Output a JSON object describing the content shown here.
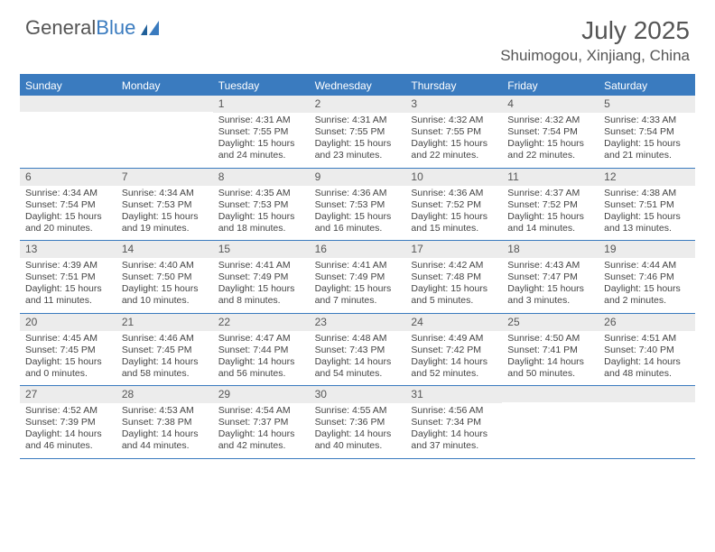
{
  "brand": {
    "part1": "General",
    "part2": "Blue"
  },
  "title": "July 2025",
  "location": "Shuimogou, Xinjiang, China",
  "colors": {
    "accent": "#3a7bbf",
    "header_text": "#ffffff",
    "daynum_bg": "#ececec",
    "text": "#444444",
    "muted": "#555555",
    "background": "#ffffff"
  },
  "fonts": {
    "title_size_pt": 21,
    "location_size_pt": 13,
    "day_header_size_pt": 9,
    "daynum_size_pt": 9,
    "body_size_pt": 8
  },
  "day_names": [
    "Sunday",
    "Monday",
    "Tuesday",
    "Wednesday",
    "Thursday",
    "Friday",
    "Saturday"
  ],
  "weeks": [
    [
      {
        "n": "",
        "sr": "",
        "ss": "",
        "dl": ""
      },
      {
        "n": "",
        "sr": "",
        "ss": "",
        "dl": ""
      },
      {
        "n": "1",
        "sr": "Sunrise: 4:31 AM",
        "ss": "Sunset: 7:55 PM",
        "dl": "Daylight: 15 hours and 24 minutes."
      },
      {
        "n": "2",
        "sr": "Sunrise: 4:31 AM",
        "ss": "Sunset: 7:55 PM",
        "dl": "Daylight: 15 hours and 23 minutes."
      },
      {
        "n": "3",
        "sr": "Sunrise: 4:32 AM",
        "ss": "Sunset: 7:55 PM",
        "dl": "Daylight: 15 hours and 22 minutes."
      },
      {
        "n": "4",
        "sr": "Sunrise: 4:32 AM",
        "ss": "Sunset: 7:54 PM",
        "dl": "Daylight: 15 hours and 22 minutes."
      },
      {
        "n": "5",
        "sr": "Sunrise: 4:33 AM",
        "ss": "Sunset: 7:54 PM",
        "dl": "Daylight: 15 hours and 21 minutes."
      }
    ],
    [
      {
        "n": "6",
        "sr": "Sunrise: 4:34 AM",
        "ss": "Sunset: 7:54 PM",
        "dl": "Daylight: 15 hours and 20 minutes."
      },
      {
        "n": "7",
        "sr": "Sunrise: 4:34 AM",
        "ss": "Sunset: 7:53 PM",
        "dl": "Daylight: 15 hours and 19 minutes."
      },
      {
        "n": "8",
        "sr": "Sunrise: 4:35 AM",
        "ss": "Sunset: 7:53 PM",
        "dl": "Daylight: 15 hours and 18 minutes."
      },
      {
        "n": "9",
        "sr": "Sunrise: 4:36 AM",
        "ss": "Sunset: 7:53 PM",
        "dl": "Daylight: 15 hours and 16 minutes."
      },
      {
        "n": "10",
        "sr": "Sunrise: 4:36 AM",
        "ss": "Sunset: 7:52 PM",
        "dl": "Daylight: 15 hours and 15 minutes."
      },
      {
        "n": "11",
        "sr": "Sunrise: 4:37 AM",
        "ss": "Sunset: 7:52 PM",
        "dl": "Daylight: 15 hours and 14 minutes."
      },
      {
        "n": "12",
        "sr": "Sunrise: 4:38 AM",
        "ss": "Sunset: 7:51 PM",
        "dl": "Daylight: 15 hours and 13 minutes."
      }
    ],
    [
      {
        "n": "13",
        "sr": "Sunrise: 4:39 AM",
        "ss": "Sunset: 7:51 PM",
        "dl": "Daylight: 15 hours and 11 minutes."
      },
      {
        "n": "14",
        "sr": "Sunrise: 4:40 AM",
        "ss": "Sunset: 7:50 PM",
        "dl": "Daylight: 15 hours and 10 minutes."
      },
      {
        "n": "15",
        "sr": "Sunrise: 4:41 AM",
        "ss": "Sunset: 7:49 PM",
        "dl": "Daylight: 15 hours and 8 minutes."
      },
      {
        "n": "16",
        "sr": "Sunrise: 4:41 AM",
        "ss": "Sunset: 7:49 PM",
        "dl": "Daylight: 15 hours and 7 minutes."
      },
      {
        "n": "17",
        "sr": "Sunrise: 4:42 AM",
        "ss": "Sunset: 7:48 PM",
        "dl": "Daylight: 15 hours and 5 minutes."
      },
      {
        "n": "18",
        "sr": "Sunrise: 4:43 AM",
        "ss": "Sunset: 7:47 PM",
        "dl": "Daylight: 15 hours and 3 minutes."
      },
      {
        "n": "19",
        "sr": "Sunrise: 4:44 AM",
        "ss": "Sunset: 7:46 PM",
        "dl": "Daylight: 15 hours and 2 minutes."
      }
    ],
    [
      {
        "n": "20",
        "sr": "Sunrise: 4:45 AM",
        "ss": "Sunset: 7:45 PM",
        "dl": "Daylight: 15 hours and 0 minutes."
      },
      {
        "n": "21",
        "sr": "Sunrise: 4:46 AM",
        "ss": "Sunset: 7:45 PM",
        "dl": "Daylight: 14 hours and 58 minutes."
      },
      {
        "n": "22",
        "sr": "Sunrise: 4:47 AM",
        "ss": "Sunset: 7:44 PM",
        "dl": "Daylight: 14 hours and 56 minutes."
      },
      {
        "n": "23",
        "sr": "Sunrise: 4:48 AM",
        "ss": "Sunset: 7:43 PM",
        "dl": "Daylight: 14 hours and 54 minutes."
      },
      {
        "n": "24",
        "sr": "Sunrise: 4:49 AM",
        "ss": "Sunset: 7:42 PM",
        "dl": "Daylight: 14 hours and 52 minutes."
      },
      {
        "n": "25",
        "sr": "Sunrise: 4:50 AM",
        "ss": "Sunset: 7:41 PM",
        "dl": "Daylight: 14 hours and 50 minutes."
      },
      {
        "n": "26",
        "sr": "Sunrise: 4:51 AM",
        "ss": "Sunset: 7:40 PM",
        "dl": "Daylight: 14 hours and 48 minutes."
      }
    ],
    [
      {
        "n": "27",
        "sr": "Sunrise: 4:52 AM",
        "ss": "Sunset: 7:39 PM",
        "dl": "Daylight: 14 hours and 46 minutes."
      },
      {
        "n": "28",
        "sr": "Sunrise: 4:53 AM",
        "ss": "Sunset: 7:38 PM",
        "dl": "Daylight: 14 hours and 44 minutes."
      },
      {
        "n": "29",
        "sr": "Sunrise: 4:54 AM",
        "ss": "Sunset: 7:37 PM",
        "dl": "Daylight: 14 hours and 42 minutes."
      },
      {
        "n": "30",
        "sr": "Sunrise: 4:55 AM",
        "ss": "Sunset: 7:36 PM",
        "dl": "Daylight: 14 hours and 40 minutes."
      },
      {
        "n": "31",
        "sr": "Sunrise: 4:56 AM",
        "ss": "Sunset: 7:34 PM",
        "dl": "Daylight: 14 hours and 37 minutes."
      },
      {
        "n": "",
        "sr": "",
        "ss": "",
        "dl": ""
      },
      {
        "n": "",
        "sr": "",
        "ss": "",
        "dl": ""
      }
    ]
  ]
}
